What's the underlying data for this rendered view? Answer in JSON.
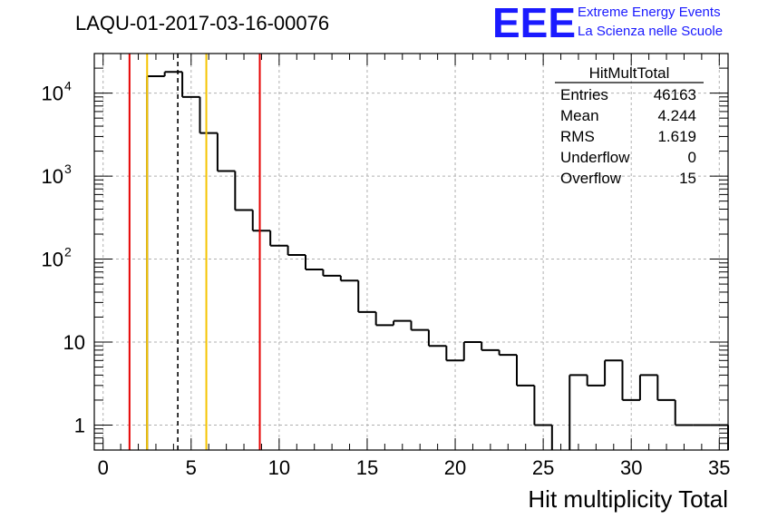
{
  "chart_data": {
    "type": "bar",
    "title": "LAQU-01-2017-03-16-00076",
    "xlabel": "Hit multiplicity Total",
    "ylabel": "",
    "xlim": [
      -0.5,
      35.5
    ],
    "ylim": [
      0.5,
      30000
    ],
    "yscale": "log",
    "grid": true,
    "x_ticks": [
      0,
      5,
      10,
      15,
      20,
      25,
      30,
      35
    ],
    "x_tick_labels": [
      "0",
      "5",
      "10",
      "15",
      "20",
      "25",
      "30",
      "35"
    ],
    "y_ticks": [
      {
        "value": 1,
        "base": "1",
        "exp": ""
      },
      {
        "value": 10,
        "base": "10",
        "exp": ""
      },
      {
        "value": 100,
        "base": "10",
        "exp": "2"
      },
      {
        "value": 1000,
        "base": "10",
        "exp": "3"
      },
      {
        "value": 10000,
        "base": "10",
        "exp": "4"
      }
    ],
    "histogram": {
      "name": "HitMultTotal",
      "bin_edges": [
        -0.5,
        35.5
      ],
      "bin_width": 1,
      "counts": [
        0,
        0,
        0,
        16000,
        18000,
        9000,
        3300,
        1150,
        390,
        220,
        145,
        112,
        75,
        63,
        55,
        23,
        16,
        18,
        14,
        9,
        6,
        10,
        8,
        7,
        3,
        1,
        0,
        4,
        3,
        6,
        2,
        4,
        2,
        1,
        1,
        1
      ]
    },
    "vertical_lines": [
      {
        "x": 1.5,
        "color": "#e60000",
        "style": "solid"
      },
      {
        "x": 2.5,
        "color": "#f5c400",
        "style": "solid"
      },
      {
        "x": 4.244,
        "color": "#000000",
        "style": "dashed"
      },
      {
        "x": 5.863,
        "color": "#f5c400",
        "style": "solid"
      },
      {
        "x": 8.9,
        "color": "#e60000",
        "style": "solid"
      }
    ],
    "stats_box": {
      "title": "HitMultTotal",
      "rows": [
        {
          "label": "Entries",
          "value": "46163"
        },
        {
          "label": "Mean",
          "value": "4.244"
        },
        {
          "label": "RMS",
          "value": "1.619"
        },
        {
          "label": "Underflow",
          "value": "0"
        },
        {
          "label": "Overflow",
          "value": "15"
        }
      ]
    }
  },
  "logo": {
    "mark": "EEE",
    "line1": "Extreme Energy Events",
    "line2": "La Scienza nelle Scuole",
    "color": "#1a1aff"
  }
}
